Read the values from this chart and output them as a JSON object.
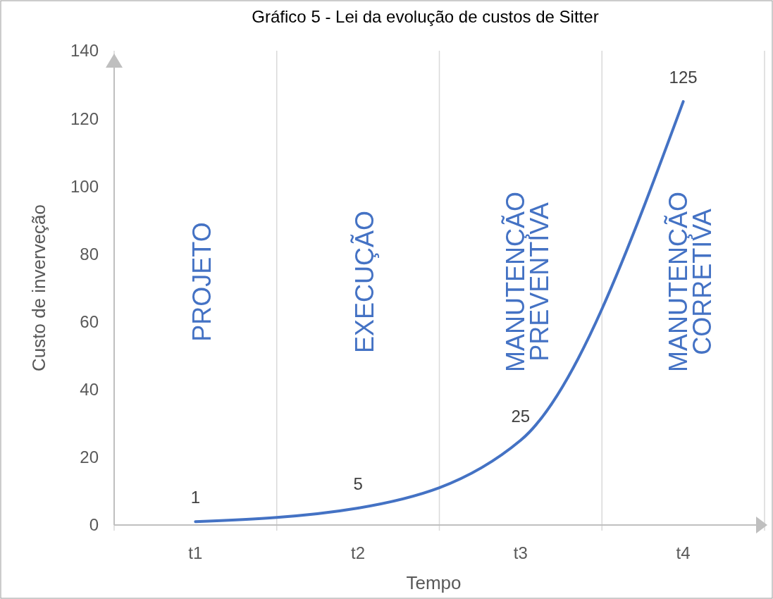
{
  "chart_data": {
    "type": "line",
    "title": "Gráfico 5 - Lei da evolução de custos de Sitter",
    "xlabel": "Tempo",
    "ylabel": "Custo de inverveção",
    "categories": [
      "t1",
      "t2",
      "t3",
      "t4"
    ],
    "series": [
      {
        "color": "#4472c4",
        "values": [
          1,
          5,
          25,
          125
        ]
      }
    ],
    "ylim": [
      0,
      140
    ],
    "yticks": [
      0,
      20,
      40,
      60,
      80,
      100,
      120,
      140
    ],
    "grid": "x",
    "data_labels": true,
    "marker": "none",
    "line_style": "solid",
    "annotations": [
      "PROJETO",
      "EXECUÇÃO",
      "MANUTENÇÃO PREVENTIVA",
      "MANUTENÇÃO CORRETIVA"
    ]
  }
}
